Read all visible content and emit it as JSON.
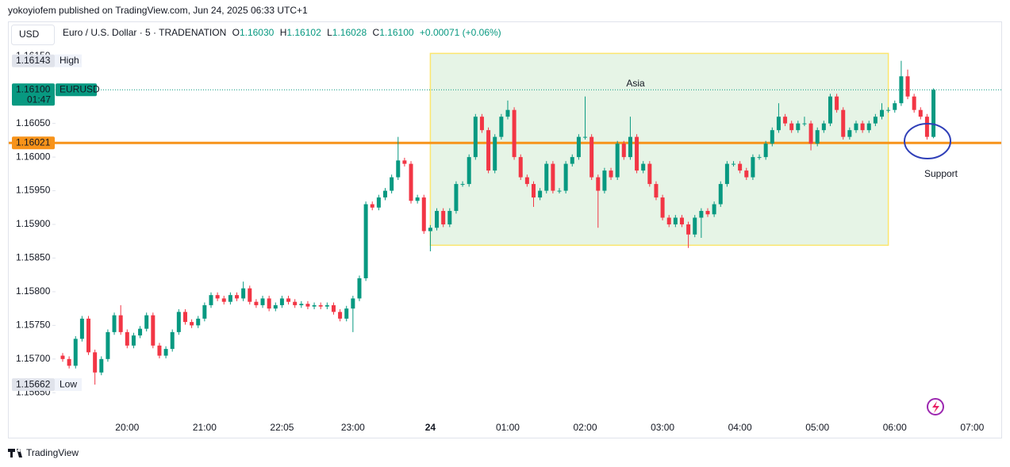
{
  "header": "yokoyiofem published on TradingView.com, Jun 24, 2025 06:33 UTC+1",
  "currency": "USD",
  "legend": {
    "symbol": "Euro / U.S. Dollar · 5 · TRADENATION",
    "o": "O",
    "open": "1.16030",
    "h": "H",
    "high": "1.16102",
    "l": "L",
    "low": "1.16028",
    "c": "C",
    "close": "1.16100",
    "change": "+0.00071 (+0.06%)"
  },
  "footer": "TradingView",
  "chart_data": {
    "type": "candlestick",
    "categories": [
      null,
      null,
      null,
      null,
      null,
      null,
      null,
      null,
      null,
      null,
      "20:00",
      null,
      null,
      null,
      null,
      null,
      null,
      null,
      null,
      null,
      null,
      null,
      "21:00",
      null,
      null,
      null,
      null,
      null,
      null,
      null,
      null,
      null,
      null,
      null,
      "22:05",
      null,
      null,
      null,
      null,
      null,
      null,
      null,
      null,
      null,
      null,
      "23:00",
      null,
      null,
      null,
      null,
      null,
      null,
      null,
      null,
      null,
      null,
      null,
      "24",
      null,
      null,
      null,
      null,
      null,
      null,
      null,
      null,
      null,
      null,
      null,
      "01:00",
      null,
      null,
      null,
      null,
      null,
      null,
      null,
      null,
      null,
      null,
      null,
      "02:00",
      null,
      null,
      null,
      null,
      null,
      null,
      null,
      null,
      null,
      null,
      null,
      "03:00",
      null,
      null,
      null,
      null,
      null,
      null,
      null,
      null,
      null,
      null,
      null,
      "04:00",
      null,
      null,
      null,
      null,
      null,
      null,
      null,
      null,
      null,
      null,
      null,
      "05:00",
      null,
      null,
      null,
      null,
      null,
      null,
      null,
      null,
      null,
      null,
      null,
      "06:00",
      null,
      null,
      null,
      null,
      null,
      null,
      null,
      null,
      null,
      null,
      null,
      "07:00"
    ],
    "series": [
      {
        "name": "EURUSD",
        "up_color": "#089981",
        "down_color": "#f23645",
        "values": [
          [
            1.15705,
            1.15709,
            1.15696,
            1.157
          ],
          [
            1.157,
            1.15704,
            1.15686,
            1.1569
          ],
          [
            1.1569,
            1.15734,
            1.15686,
            1.1573
          ],
          [
            1.1573,
            1.15764,
            1.15726,
            1.1576
          ],
          [
            1.1576,
            1.15764,
            1.15706,
            1.1571
          ],
          [
            1.1571,
            1.15714,
            1.15662,
            1.1568
          ],
          [
            1.1568,
            1.15704,
            1.15676,
            1.157
          ],
          [
            1.157,
            1.15744,
            1.15696,
            1.1574
          ],
          [
            1.1574,
            1.15769,
            1.15736,
            1.15765
          ],
          [
            1.15765,
            1.1578,
            1.15736,
            1.1574
          ],
          [
            1.1574,
            1.15744,
            1.15716,
            1.1572
          ],
          [
            1.1572,
            1.15739,
            1.15716,
            1.15735
          ],
          [
            1.15735,
            1.15749,
            1.15731,
            1.15745
          ],
          [
            1.15745,
            1.15769,
            1.15741,
            1.15765
          ],
          [
            1.15765,
            1.15769,
            1.15716,
            1.1572
          ],
          [
            1.1572,
            1.15724,
            1.15701,
            1.15705
          ],
          [
            1.15705,
            1.15719,
            1.15701,
            1.15715
          ],
          [
            1.15715,
            1.15744,
            1.15711,
            1.1574
          ],
          [
            1.1574,
            1.15774,
            1.15736,
            1.1577
          ],
          [
            1.1577,
            1.15774,
            1.15751,
            1.15755
          ],
          [
            1.15755,
            1.15759,
            1.15746,
            1.1575
          ],
          [
            1.1575,
            1.15764,
            1.15746,
            1.1576
          ],
          [
            1.1576,
            1.15784,
            1.15756,
            1.1578
          ],
          [
            1.1578,
            1.15799,
            1.15776,
            1.15795
          ],
          [
            1.15795,
            1.15799,
            1.15786,
            1.1579
          ],
          [
            1.1579,
            1.15794,
            1.15781,
            1.15785
          ],
          [
            1.15785,
            1.15799,
            1.15781,
            1.15795
          ],
          [
            1.15795,
            1.15799,
            1.15786,
            1.1579
          ],
          [
            1.1579,
            1.15815,
            1.15786,
            1.15805
          ],
          [
            1.15805,
            1.15809,
            1.15781,
            1.15785
          ],
          [
            1.15785,
            1.15789,
            1.15776,
            1.1578
          ],
          [
            1.1578,
            1.15794,
            1.15776,
            1.1579
          ],
          [
            1.1579,
            1.15794,
            1.15771,
            1.15775
          ],
          [
            1.15775,
            1.15784,
            1.15771,
            1.1578
          ],
          [
            1.1578,
            1.15794,
            1.15776,
            1.1579
          ],
          [
            1.1579,
            1.15794,
            1.15781,
            1.15785
          ],
          [
            1.15785,
            1.15789,
            1.15776,
            1.1578
          ],
          [
            1.1578,
            1.15786,
            1.15776,
            1.15782
          ],
          [
            1.15782,
            1.15786,
            1.15774,
            1.15778
          ],
          [
            1.15778,
            1.15784,
            1.15774,
            1.1578
          ],
          [
            1.1578,
            1.15784,
            1.15774,
            1.15778
          ],
          [
            1.15778,
            1.15784,
            1.15774,
            1.1578
          ],
          [
            1.1578,
            1.15784,
            1.15766,
            1.1577
          ],
          [
            1.1577,
            1.15774,
            1.15756,
            1.1576
          ],
          [
            1.1576,
            1.15779,
            1.15756,
            1.15775
          ],
          [
            1.15775,
            1.15794,
            1.1574,
            1.1579
          ],
          [
            1.1579,
            1.15824,
            1.15786,
            1.1582
          ],
          [
            1.1582,
            1.15934,
            1.15816,
            1.1593
          ],
          [
            1.1593,
            1.15934,
            1.15921,
            1.15925
          ],
          [
            1.15925,
            1.15944,
            1.15921,
            1.1594
          ],
          [
            1.1594,
            1.15954,
            1.15936,
            1.1595
          ],
          [
            1.1595,
            1.15974,
            1.15946,
            1.1597
          ],
          [
            1.1597,
            1.1603,
            1.15966,
            1.15995
          ],
          [
            1.15995,
            1.15999,
            1.15986,
            1.1599
          ],
          [
            1.1599,
            1.15994,
            1.15931,
            1.15935
          ],
          [
            1.15935,
            1.15944,
            1.15931,
            1.1594
          ],
          [
            1.1594,
            1.15944,
            1.15886,
            1.1589
          ],
          [
            1.1589,
            1.15899,
            1.1586,
            1.15895
          ],
          [
            1.15895,
            1.15924,
            1.15891,
            1.1592
          ],
          [
            1.1592,
            1.15924,
            1.15896,
            1.159
          ],
          [
            1.159,
            1.15924,
            1.15896,
            1.1592
          ],
          [
            1.1592,
            1.15964,
            1.15916,
            1.1596
          ],
          [
            1.1596,
            1.15964,
            1.15956,
            1.1596
          ],
          [
            1.1596,
            1.16004,
            1.15956,
            1.16
          ],
          [
            1.16,
            1.16064,
            1.15996,
            1.1606
          ],
          [
            1.1606,
            1.16064,
            1.16036,
            1.1604
          ],
          [
            1.1604,
            1.16044,
            1.15976,
            1.1598
          ],
          [
            1.1598,
            1.16034,
            1.15976,
            1.1603
          ],
          [
            1.1603,
            1.16064,
            1.16026,
            1.1606
          ],
          [
            1.1606,
            1.16084,
            1.16056,
            1.1607
          ],
          [
            1.1607,
            1.16074,
            1.15996,
            1.16
          ],
          [
            1.16,
            1.16004,
            1.15966,
            1.1597
          ],
          [
            1.1597,
            1.15974,
            1.15956,
            1.1596
          ],
          [
            1.1596,
            1.15964,
            1.15926,
            1.1594
          ],
          [
            1.1594,
            1.15954,
            1.15936,
            1.1595
          ],
          [
            1.1595,
            1.15994,
            1.15946,
            1.1599
          ],
          [
            1.1599,
            1.15994,
            1.15946,
            1.1595
          ],
          [
            1.1595,
            1.15954,
            1.15946,
            1.1595
          ],
          [
            1.1595,
            1.15994,
            1.15946,
            1.1599
          ],
          [
            1.1599,
            1.16004,
            1.15986,
            1.16
          ],
          [
            1.16,
            1.16034,
            1.15996,
            1.1603
          ],
          [
            1.1603,
            1.1609,
            1.16026,
            1.1603
          ],
          [
            1.1603,
            1.16034,
            1.15966,
            1.1597
          ],
          [
            1.1597,
            1.15974,
            1.15895,
            1.1595
          ],
          [
            1.1595,
            1.15984,
            1.15946,
            1.1598
          ],
          [
            1.1598,
            1.15984,
            1.15966,
            1.1597
          ],
          [
            1.1597,
            1.16024,
            1.15966,
            1.1602
          ],
          [
            1.1602,
            1.16024,
            1.15996,
            1.16
          ],
          [
            1.16,
            1.1606,
            1.15996,
            1.1603
          ],
          [
            1.1603,
            1.16034,
            1.15976,
            1.1598
          ],
          [
            1.1598,
            1.15994,
            1.15976,
            1.1599
          ],
          [
            1.1599,
            1.15994,
            1.15956,
            1.1596
          ],
          [
            1.1596,
            1.15964,
            1.15936,
            1.1594
          ],
          [
            1.1594,
            1.15944,
            1.15906,
            1.1591
          ],
          [
            1.1591,
            1.15914,
            1.15896,
            1.159
          ],
          [
            1.159,
            1.15914,
            1.15896,
            1.1591
          ],
          [
            1.1591,
            1.15914,
            1.15896,
            1.159
          ],
          [
            1.159,
            1.15904,
            1.15865,
            1.15885
          ],
          [
            1.15885,
            1.15914,
            1.15881,
            1.1591
          ],
          [
            1.1591,
            1.15924,
            1.1588,
            1.1592
          ],
          [
            1.1592,
            1.15924,
            1.15911,
            1.15915
          ],
          [
            1.15915,
            1.15934,
            1.15911,
            1.1593
          ],
          [
            1.1593,
            1.15964,
            1.15926,
            1.1596
          ],
          [
            1.1596,
            1.15994,
            1.15956,
            1.1599
          ],
          [
            1.1599,
            1.15994,
            1.15986,
            1.1599
          ],
          [
            1.1599,
            1.15994,
            1.15976,
            1.1598
          ],
          [
            1.1598,
            1.15984,
            1.15966,
            1.1597
          ],
          [
            1.1597,
            1.16004,
            1.15966,
            1.16
          ],
          [
            1.16,
            1.16004,
            1.15996,
            1.16
          ],
          [
            1.16,
            1.16024,
            1.15996,
            1.1602
          ],
          [
            1.1602,
            1.16044,
            1.16016,
            1.1604
          ],
          [
            1.1604,
            1.1608,
            1.16036,
            1.1606
          ],
          [
            1.1606,
            1.16064,
            1.16046,
            1.1605
          ],
          [
            1.1605,
            1.16054,
            1.16036,
            1.1604
          ],
          [
            1.1604,
            1.16054,
            1.16036,
            1.1605
          ],
          [
            1.1605,
            1.1606,
            1.16046,
            1.1605
          ],
          [
            1.1605,
            1.16054,
            1.1601,
            1.1602
          ],
          [
            1.1602,
            1.16044,
            1.16016,
            1.1604
          ],
          [
            1.1604,
            1.16054,
            1.16036,
            1.1605
          ],
          [
            1.1605,
            1.16094,
            1.16046,
            1.1609
          ],
          [
            1.1609,
            1.16094,
            1.16066,
            1.1607
          ],
          [
            1.1607,
            1.16074,
            1.16026,
            1.1603
          ],
          [
            1.1603,
            1.16044,
            1.16026,
            1.1604
          ],
          [
            1.1604,
            1.16054,
            1.16036,
            1.1605
          ],
          [
            1.1605,
            1.16054,
            1.16036,
            1.1604
          ],
          [
            1.1604,
            1.16054,
            1.16036,
            1.1605
          ],
          [
            1.1605,
            1.16064,
            1.16046,
            1.1606
          ],
          [
            1.1606,
            1.1608,
            1.16056,
            1.1607
          ],
          [
            1.1607,
            1.16074,
            1.16066,
            1.1607
          ],
          [
            1.1607,
            1.16084,
            1.16066,
            1.1608
          ],
          [
            1.1608,
            1.16143,
            1.16076,
            1.1612
          ],
          [
            1.1612,
            1.1613,
            1.16086,
            1.1609
          ],
          [
            1.1609,
            1.16094,
            1.16066,
            1.1607
          ],
          [
            1.1607,
            1.16074,
            1.16056,
            1.1606
          ],
          [
            1.1606,
            1.16064,
            1.16026,
            1.1603
          ],
          [
            1.1603,
            1.16102,
            1.16028,
            1.161
          ],
          null,
          null,
          null,
          null,
          null,
          null
        ]
      }
    ],
    "ylim": [
      1.15615,
      1.16198
    ],
    "yticks": [
      {
        "value": 1.1565,
        "label": "1.15650"
      },
      {
        "value": 1.157,
        "label": "1.15700"
      },
      {
        "value": 1.1575,
        "label": "1.15750"
      },
      {
        "value": 1.158,
        "label": "1.15800"
      },
      {
        "value": 1.1585,
        "label": "1.15850"
      },
      {
        "value": 1.159,
        "label": "1.15900"
      },
      {
        "value": 1.1595,
        "label": "1.15950"
      },
      {
        "value": 1.16,
        "label": "1.16000"
      },
      {
        "value": 1.1605,
        "label": "1.16050"
      },
      {
        "value": 1.161,
        "label": "1.16100"
      },
      {
        "value": 1.1615,
        "label": "1.16150"
      }
    ],
    "grid": false,
    "high_marker": {
      "value": 1.16143,
      "label": "1.16143",
      "text": "High"
    },
    "low_marker": {
      "value": 1.15662,
      "label": "1.15662",
      "text": "Low"
    },
    "last_price": {
      "value": 1.161,
      "label": "1.16100",
      "symbol": "EURUSD",
      "countdown": "01:47",
      "color": "#089981"
    },
    "level_line": {
      "value": 1.16021,
      "label": "1.16021",
      "color": "#f7931a"
    },
    "session_box": {
      "label": "Asia",
      "top": 1.16154,
      "bottom": 1.15869
    },
    "support_label": "Support"
  }
}
